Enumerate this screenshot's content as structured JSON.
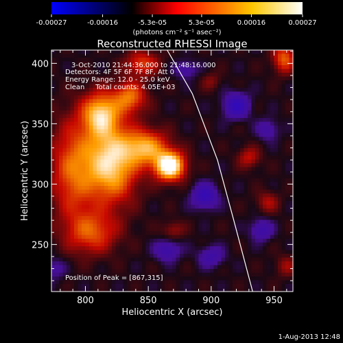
{
  "chart_data": {
    "type": "heatmap",
    "title": "Reconstructed RHESSI Image",
    "xlabel": "Heliocentric X (arcsec)",
    "ylabel": "Heliocentric Y (arcsec)",
    "xlim": [
      773,
      965
    ],
    "ylim": [
      211,
      411
    ],
    "x_ticks": [
      "800",
      "850",
      "900",
      "950"
    ],
    "x_tick_values": [
      800,
      850,
      900,
      950
    ],
    "y_ticks": [
      "250",
      "300",
      "350",
      "400"
    ],
    "y_tick_values": [
      250,
      300,
      350,
      400
    ],
    "colorbar": {
      "unit_label": "(photons cm⁻² s⁻¹ asec⁻²)",
      "min": -0.00027,
      "max": 0.00027,
      "tick_labels": [
        "-0.00027",
        "-0.00016",
        "-5.3e-05",
        "5.3e-05",
        "0.00016",
        "0.00027"
      ],
      "tick_values": [
        -0.00027,
        -0.00016,
        -5.3e-05,
        5.3e-05,
        0.00016,
        0.00027
      ],
      "stops": [
        "#0000ff",
        "#000000",
        "#ff0000",
        "#ffc800",
        "#ffffff"
      ]
    },
    "annotations": [
      "3-Oct-2010 21:44:36.000 to 21:48:16.000",
      "Detectors: 4F 5F 6F 7F 8F, Att 0",
      "Energy Range: 12.0 - 25.0 keV",
      "Clean     Total counts: 4.05E+03"
    ],
    "peak_label": "Position of Peak = [867,315]",
    "peak": [
      867,
      315
    ],
    "limb_curve": [
      [
        865,
        411
      ],
      [
        885,
        375
      ],
      [
        905,
        320
      ],
      [
        918,
        270
      ],
      [
        933,
        211
      ]
    ],
    "sources": [
      {
        "x": 820,
        "y": 318,
        "amp": 0.00021,
        "sx": 14,
        "sy": 22
      },
      {
        "x": 867,
        "y": 315,
        "amp": 0.00027,
        "sx": 8,
        "sy": 8
      },
      {
        "x": 848,
        "y": 330,
        "amp": 0.00016,
        "sx": 12,
        "sy": 10
      },
      {
        "x": 812,
        "y": 358,
        "amp": 0.00018,
        "sx": 10,
        "sy": 12
      },
      {
        "x": 835,
        "y": 372,
        "amp": 0.00013,
        "sx": 9,
        "sy": 9
      },
      {
        "x": 790,
        "y": 312,
        "amp": 0.00012,
        "sx": 12,
        "sy": 28
      },
      {
        "x": 805,
        "y": 260,
        "amp": 0.00011,
        "sx": 14,
        "sy": 12
      },
      {
        "x": 845,
        "y": 400,
        "amp": 0.0001,
        "sx": 9,
        "sy": 7
      },
      {
        "x": 958,
        "y": 404,
        "amp": 0.00012,
        "sx": 6,
        "sy": 8
      },
      {
        "x": 930,
        "y": 322,
        "amp": 7e-05,
        "sx": 6,
        "sy": 6
      },
      {
        "x": 945,
        "y": 285,
        "amp": 6e-05,
        "sx": 6,
        "sy": 6
      },
      {
        "x": 900,
        "y": 385,
        "amp": 4e-05,
        "sx": 5,
        "sy": 5
      },
      {
        "x": 870,
        "y": 262,
        "amp": 5e-05,
        "sx": 6,
        "sy": 5
      },
      {
        "x": 960,
        "y": 232,
        "amp": 5e-05,
        "sx": 6,
        "sy": 6
      },
      {
        "x": 920,
        "y": 365,
        "amp": -0.00012,
        "sx": 7,
        "sy": 7
      },
      {
        "x": 895,
        "y": 290,
        "amp": -0.00011,
        "sx": 7,
        "sy": 7
      },
      {
        "x": 865,
        "y": 245,
        "amp": -8e-05,
        "sx": 7,
        "sy": 6
      },
      {
        "x": 940,
        "y": 262,
        "amp": -8e-05,
        "sx": 6,
        "sy": 6
      },
      {
        "x": 900,
        "y": 240,
        "amp": -7e-05,
        "sx": 7,
        "sy": 6
      },
      {
        "x": 880,
        "y": 395,
        "amp": -6e-05,
        "sx": 6,
        "sy": 5
      },
      {
        "x": 945,
        "y": 345,
        "amp": -6e-05,
        "sx": 6,
        "sy": 6
      },
      {
        "x": 775,
        "y": 230,
        "amp": -5e-05,
        "sx": 6,
        "sy": 6
      }
    ]
  },
  "footer": {
    "timestamp": "1-Aug-2013 12:48"
  }
}
